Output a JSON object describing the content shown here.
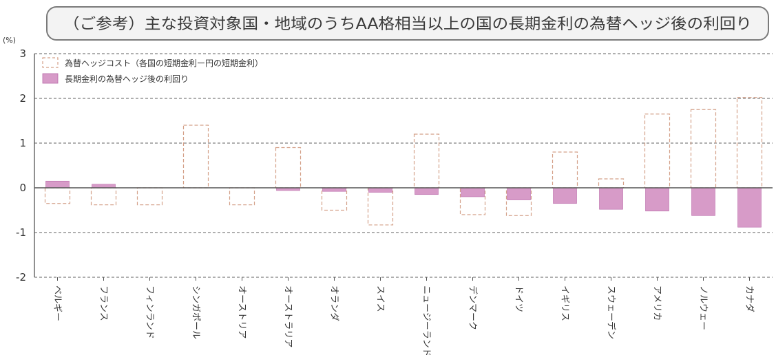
{
  "chart_data": {
    "type": "bar",
    "title": "（ご参考）主な投資対象国・地域のうちAA格相当以上の国の長期金利の為替ヘッジ後の利回り",
    "unit_label": "(%)",
    "ylim": [
      -2,
      3
    ],
    "yticks": [
      3,
      2,
      1,
      0,
      -1,
      -2
    ],
    "grid": true,
    "legend_position": "top-left",
    "categories": [
      "ベルギー",
      "フランス",
      "フィンランド",
      "シンガポール",
      "オーストリア",
      "オーストラリア",
      "オランダ",
      "スイス",
      "ニュージーランド",
      "デンマーク",
      "ドイツ",
      "イギリス",
      "スウェーデン",
      "アメリカ",
      "ノルウェー",
      "カナダ"
    ],
    "series": [
      {
        "name": "為替ヘッジコスト（各国の短期金利ー円の短期金利）",
        "style": "outline",
        "values": [
          -0.35,
          -0.38,
          -0.38,
          1.4,
          -0.38,
          0.9,
          -0.5,
          -0.83,
          1.2,
          -0.6,
          -0.62,
          0.8,
          0.2,
          1.65,
          1.75,
          2.02
        ]
      },
      {
        "name": "長期金利の為替ヘッジ後の利回り",
        "style": "filled",
        "values": [
          0.15,
          0.08,
          0.0,
          0.0,
          0.0,
          -0.06,
          -0.08,
          -0.1,
          -0.15,
          -0.2,
          -0.27,
          -0.35,
          -0.48,
          -0.52,
          -0.62,
          -0.88
        ]
      }
    ],
    "colors": {
      "hedge_cost_stroke": "#d4a089",
      "hedged_yield_fill": "#d79bc8",
      "hedged_yield_stroke": "#b96aa9",
      "grid": "#7f7f7f",
      "axis": "#555555",
      "title_border": "#7a7a7a",
      "title_bg": "#f3f3f3"
    }
  }
}
